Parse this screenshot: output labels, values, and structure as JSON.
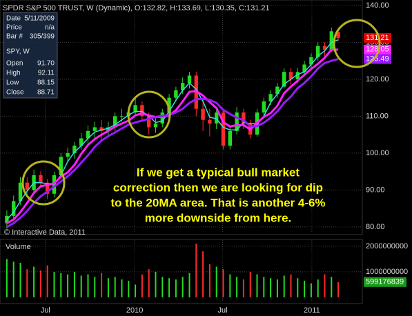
{
  "chart_data": [
    {
      "type": "candlestick",
      "title": "SPDR S&P 500 TRUST, W (Dynamic), O:132.82, H:133.69, L:130.35, C:131.21",
      "open": [
        81,
        83,
        87,
        92,
        90,
        94,
        92,
        89,
        94,
        99,
        100,
        102,
        104,
        106,
        107,
        106,
        107,
        110,
        110,
        111,
        113,
        110,
        107,
        108,
        111,
        115,
        117,
        119,
        121,
        112,
        109,
        108,
        111,
        102,
        106,
        111,
        108,
        105,
        111,
        114,
        116,
        118,
        122,
        120,
        122,
        124,
        126,
        129,
        128,
        132.82
      ],
      "high": [
        84.5,
        88.5,
        93.5,
        93.5,
        95.5,
        95,
        93,
        95,
        100,
        101.5,
        103,
        105.5,
        107.5,
        108.5,
        109,
        108.5,
        111,
        112,
        112.5,
        115,
        114,
        111,
        109.5,
        112,
        116,
        118,
        120.5,
        122,
        122,
        115,
        112,
        112.5,
        111.5,
        107,
        112.5,
        112,
        109,
        112,
        115,
        117,
        119,
        123,
        123,
        123,
        125,
        127,
        130,
        130,
        134,
        133.69
      ],
      "low": [
        79.5,
        82,
        86,
        88.5,
        89,
        90.5,
        87.5,
        88,
        93,
        97.5,
        98.5,
        101,
        102.5,
        104,
        103.5,
        104.5,
        106,
        108.5,
        109,
        110,
        108.5,
        105,
        105.5,
        107,
        110,
        114,
        116,
        117.5,
        110,
        106,
        104.5,
        106.5,
        101,
        101,
        105,
        106.5,
        104,
        104.5,
        110,
        113,
        115,
        117.5,
        118.5,
        119,
        121,
        123,
        125,
        126,
        127.5,
        130.35
      ],
      "close": [
        83,
        87,
        92,
        90,
        94,
        92,
        89,
        94,
        99,
        100,
        102,
        104,
        106,
        107,
        106,
        107,
        110,
        110,
        111,
        113,
        110,
        107,
        108,
        111,
        115,
        117,
        119,
        121,
        112,
        109,
        108,
        111,
        102,
        106,
        111,
        108,
        105,
        111,
        114,
        116,
        118,
        122,
        120,
        122,
        124,
        126,
        129,
        128,
        133,
        131.21
      ],
      "up_color": "#22dd22",
      "down_color": "#ff2a2a",
      "overlays": [
        {
          "color": "#33e0e0",
          "values": [
            82,
            84,
            87,
            89.7,
            92,
            92,
            91.7,
            91.7,
            94,
            97.7,
            100.3,
            102,
            104,
            105.7,
            106.3,
            106.7,
            107.7,
            109,
            110.3,
            111.3,
            111.3,
            110,
            108.3,
            108.7,
            111.3,
            114.3,
            117,
            119,
            117.3,
            114,
            109.7,
            109.3,
            107,
            106.3,
            106.3,
            108.3,
            108,
            108,
            110,
            113.7,
            116,
            118.7,
            120,
            121.3,
            122,
            124,
            126.3,
            127.7,
            130,
            130.7
          ]
        },
        {
          "color": "#ff22ff",
          "values": [
            81,
            82,
            84,
            86.5,
            89.2,
            91,
            91.4,
            91.8,
            93.6,
            94.8,
            96.8,
            99.8,
            102.2,
            103.8,
            105,
            106,
            107.2,
            108,
            108.8,
            110.2,
            110.8,
            110.2,
            109.8,
            109.8,
            110.2,
            111.6,
            114,
            116.6,
            116.8,
            115.6,
            113.8,
            112.2,
            108.4,
            107.2,
            107.6,
            107.6,
            106.4,
            108.2,
            109.8,
            110.8,
            112.8,
            116.2,
            118,
            119.6,
            121.2,
            122.8,
            124.2,
            125.8,
            128,
            128.05
          ]
        },
        {
          "color": "#9a1aff",
          "values": [
            80,
            81,
            82.5,
            84.3,
            86.5,
            88.3,
            89.6,
            90.9,
            92.3,
            93.7,
            95.4,
            97.4,
            99.4,
            101.7,
            103.4,
            104.6,
            105.6,
            106.7,
            107.7,
            108.3,
            108.8,
            109.3,
            109.8,
            110.1,
            110.3,
            111,
            112,
            113.6,
            114.6,
            114.7,
            114.4,
            113.6,
            111.7,
            110.6,
            109.6,
            108.9,
            107.3,
            107.3,
            108.2,
            109.6,
            111.3,
            113.6,
            115.3,
            117.6,
            119,
            120.8,
            122.9,
            124.4,
            125,
            125.49
          ]
        }
      ],
      "ylim": [
        78.3,
        141.1
      ],
      "yticks": [
        {
          "value": 140,
          "label": "140.00"
        },
        {
          "value": 130,
          "label": "130.00"
        },
        {
          "value": 120,
          "label": "120.00"
        },
        {
          "value": 110,
          "label": "110.00"
        },
        {
          "value": 100,
          "label": "100.00"
        },
        {
          "value": 90,
          "label": "90.00"
        },
        {
          "value": 80,
          "label": "80.00"
        }
      ],
      "grid": true,
      "annotation": [
        "If we get a typical bull market",
        "correction then we are looking for dip",
        "to the 20MA area. That is another 4-6%",
        "more downside from here."
      ],
      "source": "© Interactive Data, 2011",
      "data_window": {
        "rows": [
          [
            "Date",
            "5/11/2009"
          ],
          [
            "Price",
            "n/a"
          ],
          [
            "Bar #",
            "305/399"
          ]
        ],
        "symbol": "SPY, W",
        "fields": [
          [
            "Open",
            "91.70"
          ],
          [
            "High",
            "92.11"
          ],
          [
            "Low",
            "88.15"
          ],
          [
            "Close",
            "88.71"
          ]
        ]
      }
    },
    {
      "type": "bar",
      "title": "Volume",
      "values": [
        1500000000,
        1400000000,
        1350000000,
        1100000000,
        1200000000,
        1050000000,
        1250000000,
        1000000000,
        950000000,
        900000000,
        1000000000,
        850000000,
        900000000,
        800000000,
        950000000,
        750000000,
        800000000,
        700000000,
        650000000,
        500000000,
        900000000,
        1100000000,
        1000000000,
        800000000,
        750000000,
        700000000,
        800000000,
        950000000,
        2100000000,
        1800000000,
        1300000000,
        1200000000,
        1100000000,
        900000000,
        800000000,
        700000000,
        1000000000,
        900000000,
        800000000,
        750000000,
        700000000,
        850000000,
        900000000,
        750000000,
        650000000,
        550000000,
        700000000,
        900000000,
        800000000,
        599176839
      ],
      "ylim": [
        -190000000,
        2240000000
      ],
      "yticks": [
        2000000000,
        1000000000
      ],
      "xlim": [
        -0.5,
        49.5
      ],
      "xticks": [
        {
          "value": 5.7,
          "label": "Jul"
        },
        {
          "value": 18.9,
          "label": "2010"
        },
        {
          "value": 31.9,
          "label": "Jul"
        },
        {
          "value": 45.1,
          "label": "2011"
        }
      ],
      "grid": true
    }
  ]
}
